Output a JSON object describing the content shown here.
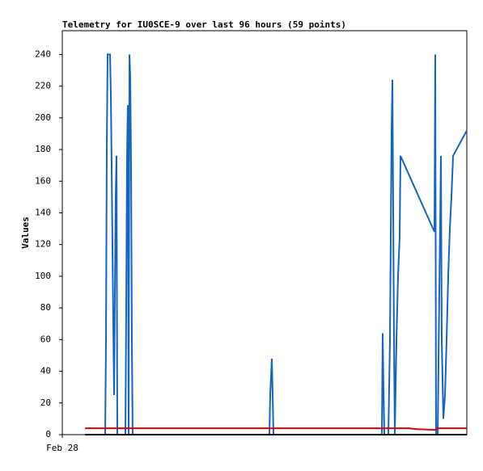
{
  "chart_data": {
    "type": "line",
    "title": "Telemetry for IU0SCE-9 over last 96 hours (59 points)",
    "y_label": "Values",
    "xlim": [
      0,
      96
    ],
    "xticks": [
      {
        "value": 0,
        "label": "Feb 28"
      }
    ],
    "ylim": [
      0,
      255
    ],
    "yticks": [
      0,
      20,
      40,
      60,
      80,
      100,
      120,
      140,
      160,
      180,
      200,
      220,
      240
    ],
    "grid": false,
    "series": [
      {
        "color": "#1565c0",
        "x": [
          10.18,
          10.37,
          10.56,
          10.75,
          11.33,
          11.52,
          11.71,
          11.9,
          12.1,
          12.29,
          12.48,
          12.67,
          12.86,
          13.06,
          14.98,
          15.17,
          15.36,
          15.55,
          15.74,
          15.94,
          16.13,
          16.32,
          16.51,
          16.7,
          49.15,
          49.34,
          49.73,
          49.92,
          50.11,
          75.84,
          76.03,
          76.22,
          76.42,
          77.38,
          77.76,
          78.14,
          78.34,
          78.53,
          78.72,
          78.91,
          79.3,
          79.68,
          80.06,
          80.26,
          88.32,
          88.51,
          88.7,
          89.09,
          89.47,
          89.86,
          90.05,
          90.43,
          90.82,
          91.2,
          91.58,
          91.97,
          92.35,
          92.74,
          96
        ],
        "values": [
          0,
          60,
          180,
          240,
          240,
          215,
          170,
          120,
          70,
          25,
          90,
          150,
          176,
          0,
          0,
          80,
          175,
          208,
          0,
          240,
          225,
          170,
          60,
          0,
          0,
          25,
          48,
          25,
          0,
          0,
          64,
          30,
          0,
          0,
          60,
          190,
          224,
          140,
          60,
          0,
          60,
          100,
          125,
          176,
          128,
          240,
          0,
          0,
          90,
          176,
          60,
          10,
          25,
          60,
          100,
          130,
          150,
          176,
          192
        ]
      },
      {
        "color": "#e00000",
        "x": [
          5.4,
          82.2,
          84,
          88.5,
          89,
          96
        ],
        "values": [
          4,
          4,
          3.5,
          3,
          4,
          4
        ]
      },
      {
        "color": "#000000",
        "x": [
          5.4,
          96
        ],
        "values": [
          0,
          0
        ]
      }
    ]
  }
}
